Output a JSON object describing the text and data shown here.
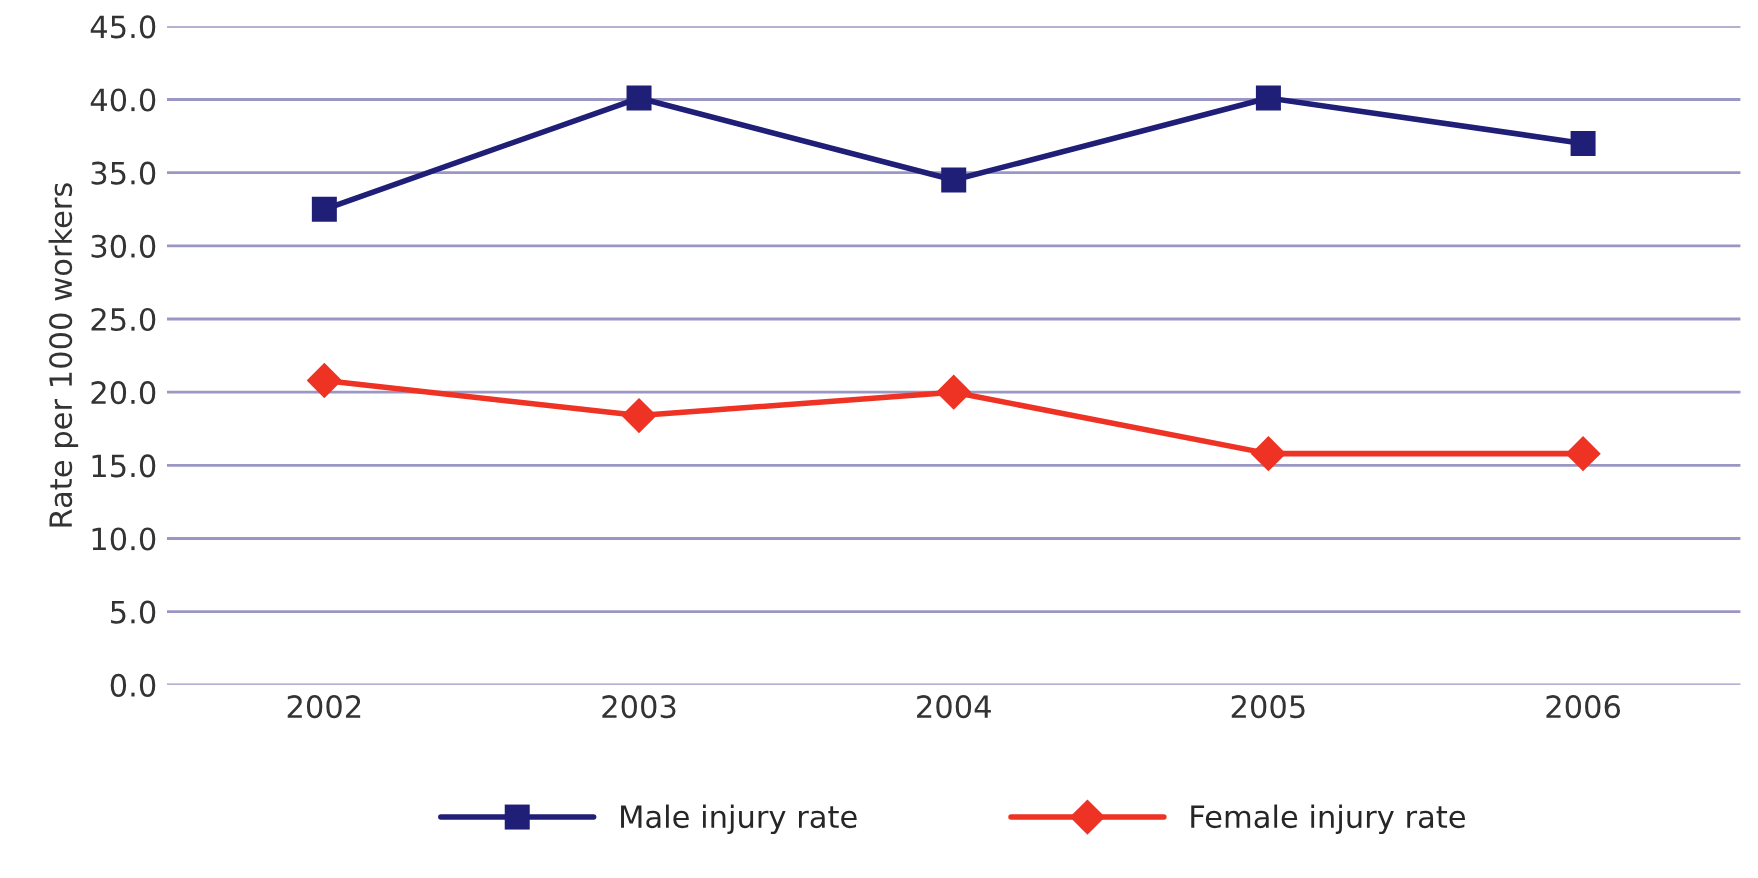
{
  "chart_data": {
    "type": "line",
    "ylabel": "Rate per 1000 workers",
    "categories": [
      "2002",
      "2003",
      "2004",
      "2005",
      "2006"
    ],
    "series": [
      {
        "name": "Male injury rate",
        "color": "#1f1f78",
        "marker": "square",
        "values": [
          32.5,
          40.1,
          34.5,
          40.1,
          37.0
        ]
      },
      {
        "name": "Female injury rate",
        "color": "#ee3224",
        "marker": "diamond",
        "values": [
          20.8,
          18.4,
          20.0,
          15.8,
          15.8
        ]
      }
    ],
    "ylim": [
      0,
      45
    ],
    "yticks": [
      {
        "value": 0,
        "label": "0.0"
      },
      {
        "value": 5,
        "label": "5.0"
      },
      {
        "value": 10,
        "label": "10.0"
      },
      {
        "value": 15,
        "label": "15.0"
      },
      {
        "value": 20,
        "label": "20.0"
      },
      {
        "value": 25,
        "label": "25.0"
      },
      {
        "value": 30,
        "label": "30.0"
      },
      {
        "value": 35,
        "label": "35.0"
      },
      {
        "value": 40,
        "label": "40.0"
      },
      {
        "value": 45,
        "label": "45.0"
      }
    ],
    "grid": "y",
    "legend": "bottom",
    "line_style": "solid"
  }
}
